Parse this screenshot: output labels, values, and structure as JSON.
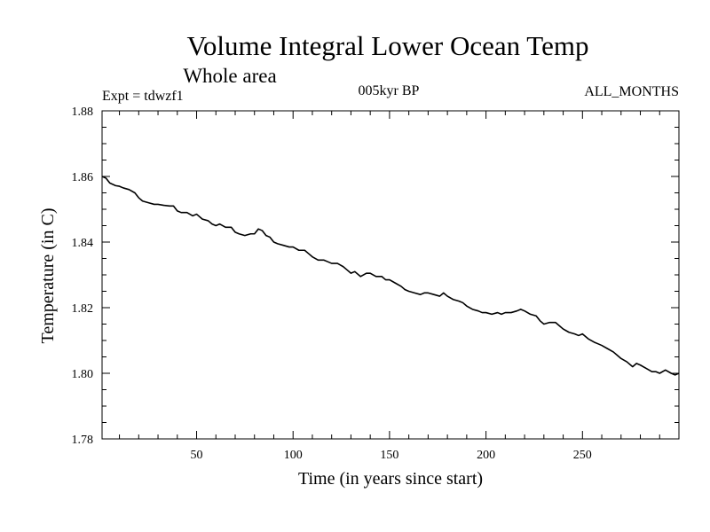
{
  "chart_data": {
    "type": "line",
    "title": "Volume Integral Lower Ocean Temp",
    "subtitle": "Whole area",
    "experiment": "Expt = tdwzf1",
    "period": "005kyr BP",
    "months": "ALL_MONTHS",
    "xlabel": "Time (in years since start)",
    "ylabel": "Temperature (in C)",
    "xlim": [
      1,
      300
    ],
    "ylim": [
      1.78,
      1.88
    ],
    "x_ticks": [
      50,
      100,
      150,
      200,
      250
    ],
    "x_tick_labels": [
      "50",
      "100",
      "150",
      "200",
      "250"
    ],
    "y_ticks": [
      1.78,
      1.8,
      1.82,
      1.84,
      1.86,
      1.88
    ],
    "y_tick_labels": [
      "1.78",
      "1.80",
      "1.82",
      "1.84",
      "1.86",
      "1.88"
    ],
    "grid": false,
    "series": [
      {
        "name": "Volume Integral Lower Ocean Temp",
        "x": [
          1,
          3,
          5,
          8,
          10,
          12,
          15,
          18,
          20,
          22,
          25,
          28,
          30,
          33,
          36,
          38,
          40,
          42,
          45,
          48,
          50,
          53,
          56,
          58,
          60,
          62,
          65,
          68,
          70,
          72,
          75,
          78,
          80,
          82,
          84,
          86,
          88,
          90,
          92,
          95,
          98,
          100,
          103,
          106,
          108,
          110,
          113,
          116,
          118,
          120,
          123,
          126,
          128,
          130,
          132,
          135,
          138,
          140,
          143,
          146,
          148,
          150,
          153,
          156,
          158,
          160,
          163,
          166,
          168,
          170,
          173,
          176,
          178,
          180,
          183,
          186,
          188,
          190,
          193,
          196,
          198,
          200,
          203,
          206,
          208,
          210,
          213,
          216,
          218,
          220,
          223,
          226,
          228,
          230,
          233,
          236,
          238,
          240,
          243,
          246,
          248,
          250,
          253,
          256,
          258,
          260,
          263,
          266,
          268,
          270,
          273,
          276,
          278,
          280,
          283,
          286,
          288,
          290,
          293,
          296,
          298,
          300
        ],
        "y": [
          1.86,
          1.8595,
          1.858,
          1.8572,
          1.857,
          1.8565,
          1.856,
          1.855,
          1.8535,
          1.8525,
          1.852,
          1.8515,
          1.8515,
          1.8512,
          1.851,
          1.851,
          1.8495,
          1.849,
          1.849,
          1.848,
          1.8485,
          1.847,
          1.8465,
          1.8455,
          1.845,
          1.8455,
          1.8445,
          1.8445,
          1.843,
          1.8425,
          1.842,
          1.8425,
          1.8425,
          1.844,
          1.8435,
          1.842,
          1.8415,
          1.84,
          1.8395,
          1.839,
          1.8385,
          1.8385,
          1.8375,
          1.8375,
          1.8365,
          1.8355,
          1.8345,
          1.8345,
          1.834,
          1.8335,
          1.8335,
          1.8325,
          1.8315,
          1.8305,
          1.831,
          1.8295,
          1.8305,
          1.8305,
          1.8295,
          1.8295,
          1.8285,
          1.8285,
          1.8275,
          1.8265,
          1.8255,
          1.825,
          1.8245,
          1.824,
          1.8245,
          1.8245,
          1.824,
          1.8235,
          1.8245,
          1.8235,
          1.8225,
          1.822,
          1.8215,
          1.8205,
          1.8195,
          1.819,
          1.8185,
          1.8185,
          1.818,
          1.8185,
          1.818,
          1.8185,
          1.8185,
          1.819,
          1.8195,
          1.819,
          1.818,
          1.8175,
          1.816,
          1.815,
          1.8155,
          1.8155,
          1.8145,
          1.8135,
          1.8125,
          1.812,
          1.8115,
          1.812,
          1.8105,
          1.8095,
          1.809,
          1.8085,
          1.8075,
          1.8065,
          1.8055,
          1.8045,
          1.8035,
          1.802,
          1.803,
          1.8025,
          1.8015,
          1.8005,
          1.8005,
          1.8,
          1.801,
          1.8,
          1.7995,
          1.8
        ]
      }
    ]
  }
}
